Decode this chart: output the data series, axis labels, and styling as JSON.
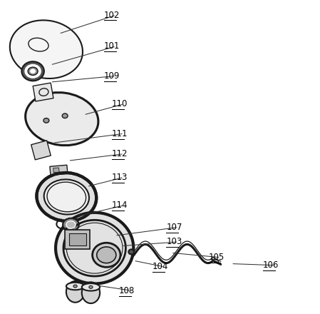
{
  "background_color": "#ffffff",
  "line_color": "#1a1a1a",
  "label_color": "#000000",
  "labels_info": [
    [
      "102",
      [
        0.32,
        0.955
      ],
      [
        0.175,
        0.895
      ]
    ],
    [
      "101",
      [
        0.32,
        0.855
      ],
      [
        0.148,
        0.795
      ]
    ],
    [
      "109",
      [
        0.32,
        0.76
      ],
      [
        0.148,
        0.74
      ]
    ],
    [
      "110",
      [
        0.345,
        0.67
      ],
      [
        0.255,
        0.635
      ]
    ],
    [
      "111",
      [
        0.345,
        0.575
      ],
      [
        0.155,
        0.545
      ]
    ],
    [
      "112",
      [
        0.345,
        0.51
      ],
      [
        0.205,
        0.488
      ]
    ],
    [
      "113",
      [
        0.345,
        0.435
      ],
      [
        0.265,
        0.405
      ]
    ],
    [
      "114",
      [
        0.345,
        0.345
      ],
      [
        0.235,
        0.31
      ]
    ],
    [
      "107",
      [
        0.52,
        0.275
      ],
      [
        0.355,
        0.248
      ]
    ],
    [
      "103",
      [
        0.52,
        0.228
      ],
      [
        0.375,
        0.215
      ]
    ],
    [
      "105",
      [
        0.655,
        0.178
      ],
      [
        0.535,
        0.193
      ]
    ],
    [
      "106",
      [
        0.83,
        0.153
      ],
      [
        0.728,
        0.158
      ]
    ],
    [
      "104",
      [
        0.475,
        0.148
      ],
      [
        0.415,
        0.168
      ]
    ],
    [
      "108",
      [
        0.368,
        0.072
      ],
      [
        0.3,
        0.088
      ]
    ]
  ]
}
